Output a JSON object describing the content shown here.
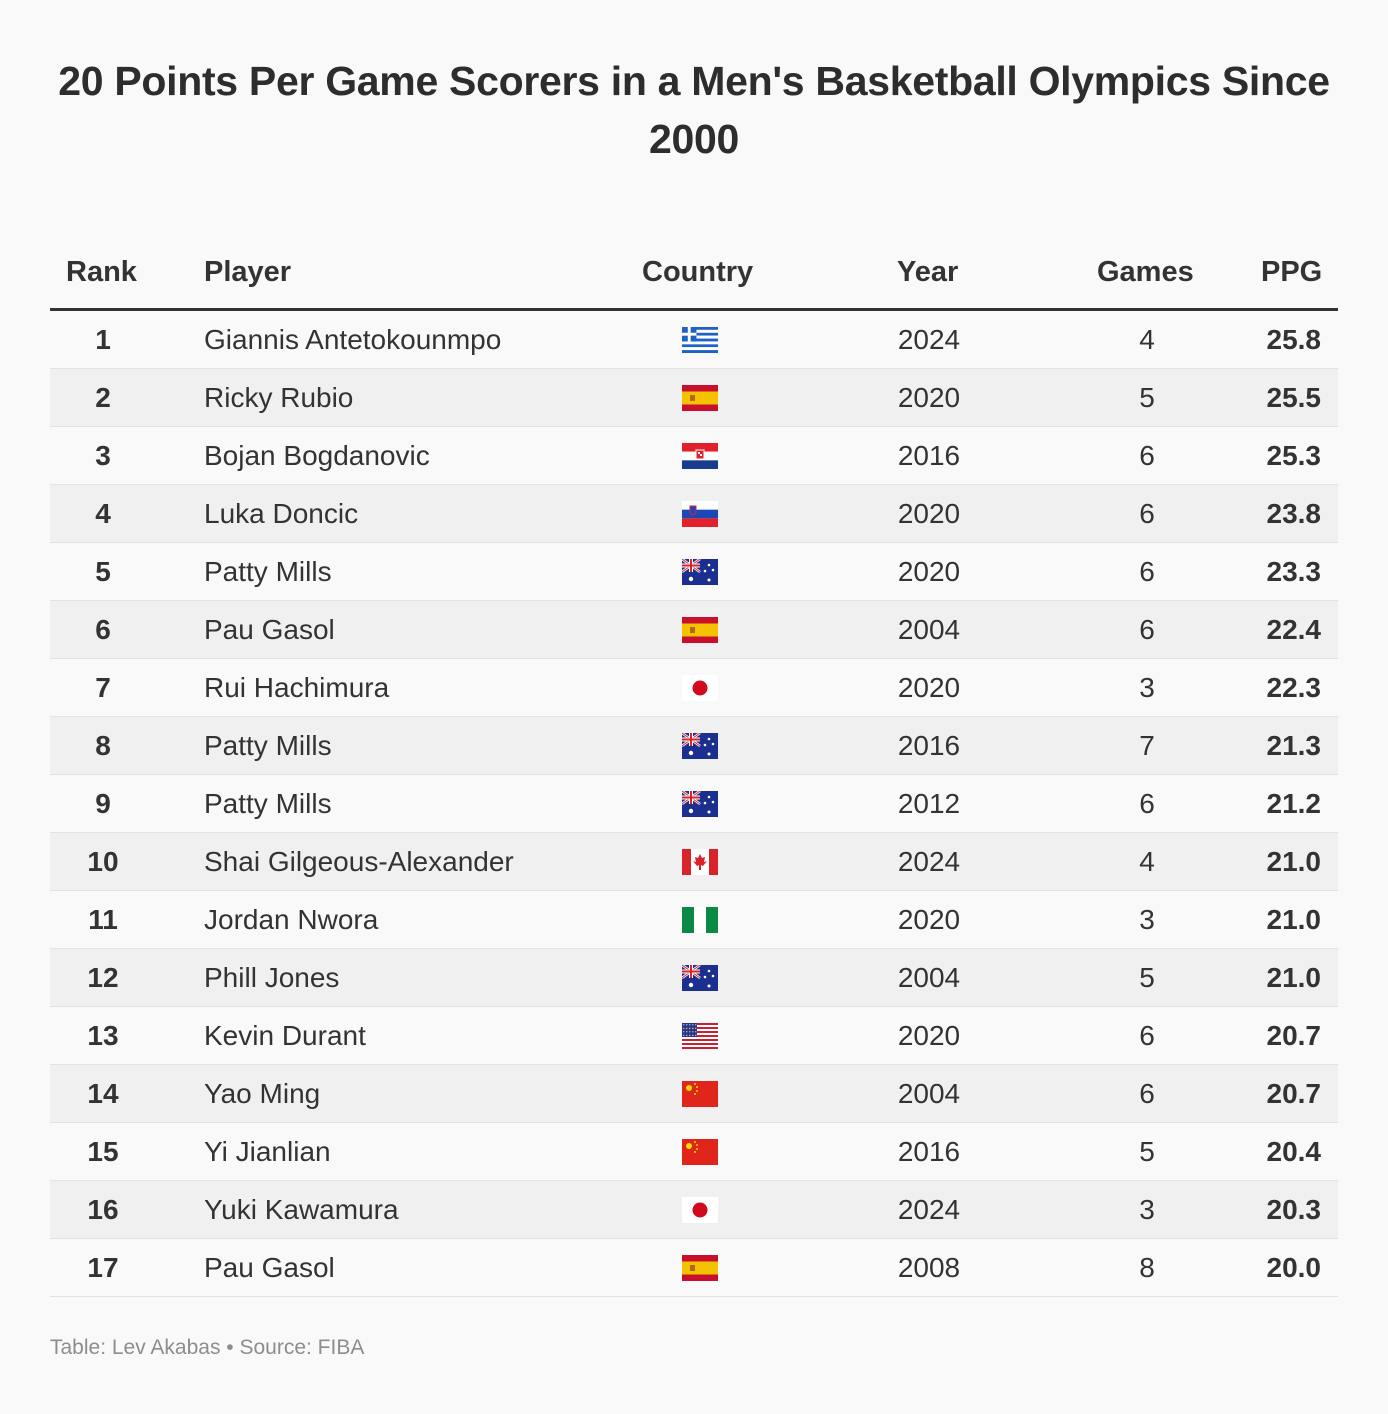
{
  "title": "20 Points Per Game Scorers in a Men's Basketball Olympics Since 2000",
  "footer": "Table: Lev Akabas • Source: FIBA",
  "chart_data": {
    "type": "table",
    "title": "20 Points Per Game Scorers in a Men's Basketball Olympics Since 2000",
    "columns": [
      "Rank",
      "Player",
      "Country",
      "Year",
      "Games",
      "PPG"
    ],
    "rows": [
      {
        "rank": "1",
        "player": "Giannis Antetokounmpo",
        "country": "greece-flag-icon",
        "year": "2024",
        "games": "4",
        "ppg": "25.8"
      },
      {
        "rank": "2",
        "player": "Ricky Rubio",
        "country": "spain-flag-icon",
        "year": "2020",
        "games": "5",
        "ppg": "25.5"
      },
      {
        "rank": "3",
        "player": "Bojan Bogdanovic",
        "country": "croatia-flag-icon",
        "year": "2016",
        "games": "6",
        "ppg": "25.3"
      },
      {
        "rank": "4",
        "player": "Luka Doncic",
        "country": "slovenia-flag-icon",
        "year": "2020",
        "games": "6",
        "ppg": "23.8"
      },
      {
        "rank": "5",
        "player": "Patty Mills",
        "country": "australia-flag-icon",
        "year": "2020",
        "games": "6",
        "ppg": "23.3"
      },
      {
        "rank": "6",
        "player": "Pau Gasol",
        "country": "spain-flag-icon",
        "year": "2004",
        "games": "6",
        "ppg": "22.4"
      },
      {
        "rank": "7",
        "player": "Rui Hachimura",
        "country": "japan-flag-icon",
        "year": "2020",
        "games": "3",
        "ppg": "22.3"
      },
      {
        "rank": "8",
        "player": "Patty Mills",
        "country": "australia-flag-icon",
        "year": "2016",
        "games": "7",
        "ppg": "21.3"
      },
      {
        "rank": "9",
        "player": "Patty Mills",
        "country": "australia-flag-icon",
        "year": "2012",
        "games": "6",
        "ppg": "21.2"
      },
      {
        "rank": "10",
        "player": "Shai Gilgeous-Alexander",
        "country": "canada-flag-icon",
        "year": "2024",
        "games": "4",
        "ppg": "21.0"
      },
      {
        "rank": "11",
        "player": "Jordan Nwora",
        "country": "nigeria-flag-icon",
        "year": "2020",
        "games": "3",
        "ppg": "21.0"
      },
      {
        "rank": "12",
        "player": "Phill Jones",
        "country": "australia-flag-icon",
        "year": "2004",
        "games": "5",
        "ppg": "21.0"
      },
      {
        "rank": "13",
        "player": "Kevin Durant",
        "country": "usa-flag-icon",
        "year": "2020",
        "games": "6",
        "ppg": "20.7"
      },
      {
        "rank": "14",
        "player": "Yao Ming",
        "country": "china-flag-icon",
        "year": "2004",
        "games": "6",
        "ppg": "20.7"
      },
      {
        "rank": "15",
        "player": "Yi Jianlian",
        "country": "china-flag-icon",
        "year": "2016",
        "games": "5",
        "ppg": "20.4"
      },
      {
        "rank": "16",
        "player": "Yuki Kawamura",
        "country": "japan-flag-icon",
        "year": "2024",
        "games": "3",
        "ppg": "20.3"
      },
      {
        "rank": "17",
        "player": "Pau Gasol",
        "country": "spain-flag-icon",
        "year": "2008",
        "games": "8",
        "ppg": "20.0"
      }
    ]
  }
}
